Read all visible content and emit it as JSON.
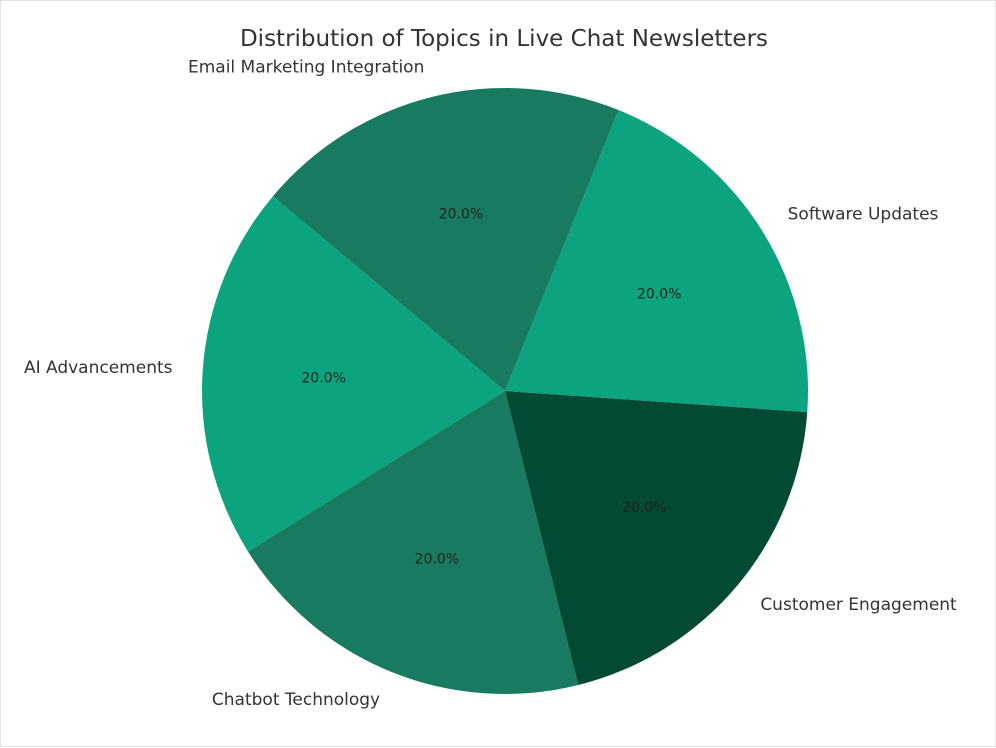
{
  "chart_data": {
    "type": "pie",
    "title": "Distribution of Topics in Live Chat Newsletters",
    "start_angle_deg": -4,
    "direction": "counterclockwise",
    "slices": [
      {
        "label": "Software Updates",
        "value": 20,
        "pct_label": "20.0%",
        "color": "#0ca37f"
      },
      {
        "label": "Email Marketing Integration",
        "value": 20,
        "pct_label": "20.0%",
        "color": "#177a61"
      },
      {
        "label": "AI Advancements",
        "value": 20,
        "pct_label": "20.0%",
        "color": "#0ca37f"
      },
      {
        "label": "Chatbot Technology",
        "value": 20,
        "pct_label": "20.0%",
        "color": "#177a61"
      },
      {
        "label": "Customer Engagement",
        "value": 20,
        "pct_label": "20.0%",
        "color": "#034a35"
      }
    ]
  }
}
